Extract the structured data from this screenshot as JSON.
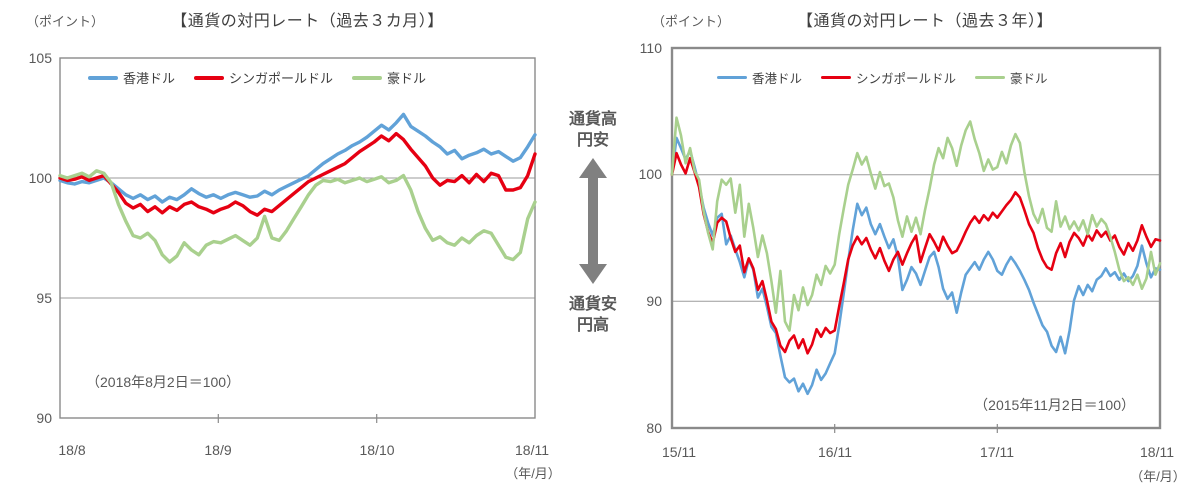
{
  "center_annotation": {
    "top": "通貨高\n円安",
    "bottom": "通貨安\n円高"
  },
  "chart_data": [
    {
      "type": "line",
      "title": "【通貨の対円レート（過去３カ月）】",
      "unit_label": "（ポイント）",
      "axis_note": "（年/月）",
      "annotation": "（2018年8月2日＝100）",
      "ylim": [
        90,
        105
      ],
      "y_ticks": [
        "105",
        "100",
        "95",
        "90"
      ],
      "x_ticks": [
        "18/8",
        "18/9",
        "18/10",
        "18/11"
      ],
      "x_tick_pos": [
        0,
        0.3333,
        0.6667,
        1
      ],
      "gridlines": [
        100,
        95
      ],
      "grid_color": "#9b9b9b",
      "frame_color": "#8a8a8a",
      "frame_width": 1.4,
      "line_width": 3.4,
      "series": [
        {
          "name": "香港ドル",
          "color": "#61A2D8",
          "values": [
            99.9,
            99.8,
            99.75,
            99.85,
            99.8,
            99.9,
            100.0,
            99.8,
            99.55,
            99.3,
            99.15,
            99.3,
            99.1,
            99.25,
            99.0,
            99.2,
            99.1,
            99.3,
            99.55,
            99.35,
            99.2,
            99.3,
            99.15,
            99.3,
            99.4,
            99.3,
            99.2,
            99.25,
            99.45,
            99.3,
            99.5,
            99.65,
            99.8,
            99.95,
            100.1,
            100.35,
            100.6,
            100.8,
            101.0,
            101.15,
            101.35,
            101.5,
            101.7,
            101.95,
            102.2,
            102.0,
            102.3,
            102.65,
            102.15,
            101.95,
            101.75,
            101.5,
            101.3,
            101.0,
            101.15,
            100.8,
            100.95,
            101.05,
            101.2,
            101.0,
            101.1,
            100.9,
            100.7,
            100.85,
            101.3,
            101.8
          ]
        },
        {
          "name": "シンガポールドル",
          "color": "#E60012",
          "values": [
            100.0,
            99.9,
            99.95,
            100.05,
            99.9,
            100.0,
            100.1,
            99.75,
            99.4,
            98.95,
            98.75,
            98.9,
            98.6,
            98.8,
            98.55,
            98.8,
            98.65,
            98.9,
            99.0,
            98.8,
            98.7,
            98.55,
            98.7,
            98.8,
            99.0,
            98.85,
            98.6,
            98.45,
            98.7,
            98.6,
            98.85,
            99.1,
            99.35,
            99.6,
            99.85,
            100.0,
            100.15,
            100.3,
            100.45,
            100.6,
            100.85,
            101.1,
            101.3,
            101.5,
            101.75,
            101.55,
            101.85,
            101.6,
            101.2,
            100.85,
            100.5,
            100.0,
            99.7,
            99.9,
            99.85,
            100.1,
            99.8,
            100.15,
            99.85,
            100.2,
            100.1,
            99.5,
            99.5,
            99.6,
            100.1,
            101.0
          ]
        },
        {
          "name": "豪ドル",
          "color": "#A9D08E",
          "values": [
            100.1,
            100.0,
            100.1,
            100.2,
            100.05,
            100.3,
            100.2,
            99.8,
            98.9,
            98.2,
            97.6,
            97.5,
            97.7,
            97.4,
            96.8,
            96.5,
            96.75,
            97.3,
            97.0,
            96.8,
            97.2,
            97.35,
            97.3,
            97.45,
            97.6,
            97.4,
            97.2,
            97.5,
            98.4,
            97.5,
            97.4,
            97.8,
            98.3,
            98.8,
            99.3,
            99.7,
            99.9,
            99.85,
            99.95,
            99.8,
            99.9,
            100.0,
            99.85,
            99.95,
            100.05,
            99.8,
            99.9,
            100.1,
            99.5,
            98.6,
            97.9,
            97.4,
            97.55,
            97.3,
            97.2,
            97.5,
            97.3,
            97.6,
            97.8,
            97.7,
            97.2,
            96.7,
            96.6,
            96.9,
            98.3,
            99.0
          ]
        }
      ]
    },
    {
      "type": "line",
      "title": "【通貨の対円レート（過去３年）】",
      "unit_label": "（ポイント）",
      "axis_note": "（年/月）",
      "annotation": "（2015年11月2日＝100）",
      "ylim": [
        80,
        110
      ],
      "y_ticks": [
        "110",
        "100",
        "90",
        "80"
      ],
      "x_ticks": [
        "15/11",
        "16/11",
        "17/11",
        "18/11"
      ],
      "x_tick_pos": [
        0,
        0.3333,
        0.6667,
        1
      ],
      "gridlines": [
        100,
        90
      ],
      "grid_color": "#9b9b9b",
      "frame_color": "#8a8a8a",
      "frame_width": 2.4,
      "line_width": 2.6,
      "series": [
        {
          "name": "香港ドル",
          "color": "#61A2D8",
          "values": [
            100.0,
            102.9,
            102.1,
            101.2,
            101.9,
            100.6,
            99.2,
            97.4,
            96.2,
            95.2,
            96.6,
            96.9,
            94.5,
            95.2,
            94.1,
            93.1,
            91.9,
            93.3,
            92.5,
            90.3,
            91.0,
            89.6,
            88.0,
            87.5,
            85.7,
            84.0,
            83.6,
            83.9,
            82.9,
            83.5,
            82.7,
            83.4,
            84.6,
            83.8,
            84.3,
            85.1,
            85.9,
            88.1,
            90.6,
            93.2,
            95.6,
            97.7,
            96.8,
            97.4,
            96.1,
            95.3,
            96.1,
            95.1,
            94.2,
            94.9,
            93.5,
            90.9,
            91.7,
            92.7,
            92.2,
            91.3,
            92.4,
            93.5,
            93.9,
            92.7,
            91.0,
            90.2,
            90.7,
            89.1,
            90.7,
            92.1,
            92.6,
            93.1,
            92.5,
            93.3,
            93.9,
            93.3,
            92.4,
            92.1,
            92.9,
            93.5,
            93.0,
            92.4,
            91.7,
            90.9,
            89.9,
            89.0,
            88.1,
            87.6,
            86.5,
            86.0,
            87.2,
            85.9,
            87.7,
            90.1,
            91.2,
            90.5,
            91.3,
            90.8,
            91.7,
            92.0,
            92.6,
            92.0,
            92.3,
            91.7,
            92.2,
            91.6,
            92.0,
            92.8,
            94.4,
            93.0,
            91.9,
            92.6,
            92.5
          ]
        },
        {
          "name": "シンガポールドル",
          "color": "#E60012",
          "values": [
            100.0,
            101.7,
            100.8,
            100.1,
            101.3,
            100.2,
            99.0,
            96.9,
            95.5,
            94.6,
            96.2,
            96.6,
            96.3,
            95.0,
            93.9,
            94.4,
            92.3,
            93.4,
            92.6,
            90.9,
            91.6,
            90.1,
            88.4,
            87.8,
            86.5,
            86.0,
            86.9,
            87.3,
            86.3,
            87.0,
            85.9,
            86.6,
            87.8,
            87.2,
            87.9,
            87.5,
            87.7,
            89.6,
            91.4,
            93.3,
            94.4,
            95.1,
            94.5,
            95.0,
            94.1,
            93.4,
            94.2,
            93.2,
            92.4,
            93.3,
            93.9,
            92.9,
            93.8,
            94.6,
            95.2,
            93.1,
            94.2,
            95.3,
            94.7,
            94.0,
            95.1,
            94.4,
            93.8,
            94.0,
            94.7,
            95.5,
            96.2,
            96.7,
            96.2,
            96.8,
            96.4,
            97.0,
            96.6,
            97.1,
            97.6,
            98.0,
            98.6,
            98.2,
            97.2,
            96.1,
            95.4,
            94.2,
            93.3,
            92.7,
            92.5,
            93.8,
            94.6,
            93.5,
            94.7,
            95.4,
            95.0,
            94.4,
            95.3,
            94.8,
            95.6,
            95.1,
            95.5,
            94.8,
            95.2,
            94.3,
            93.7,
            94.6,
            94.0,
            94.8,
            96.0,
            95.1,
            94.3,
            94.9,
            94.8
          ]
        },
        {
          "name": "豪ドル",
          "color": "#A9D08E",
          "values": [
            100.0,
            104.5,
            103.1,
            100.9,
            102.1,
            100.3,
            99.6,
            97.1,
            95.4,
            94.1,
            97.9,
            99.6,
            99.2,
            99.7,
            97.0,
            99.2,
            95.1,
            97.7,
            95.8,
            93.5,
            95.2,
            93.8,
            91.6,
            89.1,
            92.4,
            88.4,
            87.7,
            90.5,
            89.3,
            91.1,
            89.7,
            90.5,
            92.1,
            91.3,
            92.8,
            92.2,
            92.9,
            95.3,
            97.3,
            99.2,
            100.4,
            101.7,
            100.8,
            101.4,
            100.1,
            98.9,
            100.2,
            99.1,
            99.3,
            98.2,
            96.4,
            95.1,
            96.7,
            95.5,
            96.6,
            95.3,
            97.2,
            98.9,
            100.8,
            102.1,
            101.3,
            102.9,
            102.1,
            100.7,
            102.3,
            103.5,
            104.2,
            102.8,
            101.7,
            100.3,
            101.2,
            100.4,
            100.6,
            101.8,
            100.9,
            102.3,
            103.2,
            102.5,
            100.2,
            98.3,
            96.9,
            96.2,
            97.3,
            95.8,
            95.5,
            97.9,
            95.9,
            96.7,
            95.7,
            96.3,
            95.6,
            96.4,
            95.3,
            96.8,
            95.9,
            96.5,
            96.1,
            95.1,
            93.9,
            92.5,
            91.6,
            91.9,
            91.3,
            92.1,
            91.0,
            91.8,
            93.9,
            92.1,
            93.0
          ]
        }
      ]
    }
  ]
}
